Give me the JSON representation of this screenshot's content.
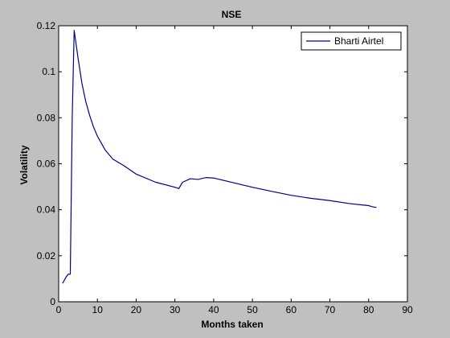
{
  "colors": {
    "figure_background": "#c0c0c0",
    "axes_background": "#ffffff",
    "series_color": "#00008b"
  },
  "chart_data": {
    "type": "line",
    "title": "NSE",
    "xlabel": "Months taken",
    "ylabel": "Volatility",
    "xlim": [
      0,
      90
    ],
    "ylim": [
      0,
      0.12
    ],
    "xticks": [
      "0",
      "10",
      "20",
      "30",
      "40",
      "50",
      "60",
      "70",
      "80",
      "90"
    ],
    "yticks": [
      "0",
      "0.02",
      "0.04",
      "0.06",
      "0.08",
      "0.1",
      "0.12"
    ],
    "grid": false,
    "legend_position": "top-right",
    "series": [
      {
        "name": "Bharti Airtel",
        "x": [
          1,
          2,
          2.5,
          3,
          3.5,
          4,
          5,
          6,
          7,
          8,
          9,
          10,
          12,
          14,
          17,
          20,
          25,
          30,
          31,
          32,
          34,
          36,
          38,
          40,
          45,
          50,
          55,
          60,
          65,
          70,
          75,
          80,
          81,
          82
        ],
        "y": [
          0.008,
          0.011,
          0.012,
          0.012,
          0.08,
          0.118,
          0.106,
          0.095,
          0.087,
          0.081,
          0.076,
          0.072,
          0.066,
          0.062,
          0.059,
          0.0555,
          0.052,
          0.0498,
          0.0492,
          0.052,
          0.0535,
          0.0532,
          0.054,
          0.0538,
          0.0518,
          0.0498,
          0.048,
          0.0463,
          0.045,
          0.044,
          0.0427,
          0.0418,
          0.0413,
          0.041
        ]
      }
    ]
  }
}
